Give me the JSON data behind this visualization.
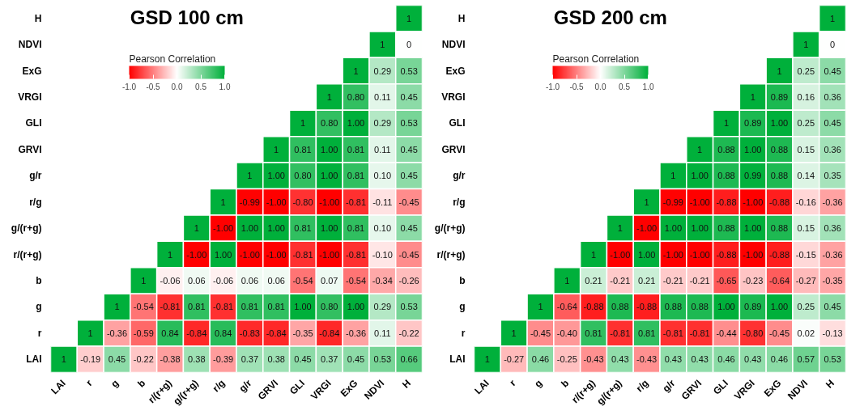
{
  "chart_data": [
    {
      "type": "heatmap",
      "title": "GSD 100 cm",
      "clabel": "Pearson Correlation",
      "categories": [
        "LAI",
        "r",
        "g",
        "b",
        "r/(r+g)",
        "g/(r+g)",
        "r/g",
        "g/r",
        "GRVI",
        "GLI",
        "VRGI",
        "ExG",
        "NDVI",
        "H"
      ],
      "y_categories": [
        "H",
        "NDVI",
        "ExG",
        "VRGI",
        "GLI",
        "GRVI",
        "g/r",
        "r/g",
        "g/(r+g)",
        "r/(r+g)",
        "b",
        "g",
        "r",
        "LAI"
      ],
      "clim": [
        -1.0,
        1.0
      ],
      "cticks": [
        {
          "value": -1.0,
          "label": "-1.0"
        },
        {
          "value": -0.5,
          "label": "-0.5"
        },
        {
          "value": 0.0,
          "label": "0.0"
        },
        {
          "value": 0.5,
          "label": "0.5"
        },
        {
          "value": 1.0,
          "label": "1.0"
        }
      ],
      "cells": [
        [
          null,
          null,
          null,
          null,
          null,
          null,
          null,
          null,
          null,
          null,
          null,
          null,
          null,
          1
        ],
        [
          null,
          null,
          null,
          null,
          null,
          null,
          null,
          null,
          null,
          null,
          null,
          null,
          1,
          0
        ],
        [
          null,
          null,
          null,
          null,
          null,
          null,
          null,
          null,
          null,
          null,
          null,
          1,
          0.29,
          0.53
        ],
        [
          null,
          null,
          null,
          null,
          null,
          null,
          null,
          null,
          null,
          null,
          1,
          0.8,
          0.11,
          0.45
        ],
        [
          null,
          null,
          null,
          null,
          null,
          null,
          null,
          null,
          null,
          1,
          0.8,
          1.0,
          0.29,
          0.53
        ],
        [
          null,
          null,
          null,
          null,
          null,
          null,
          null,
          null,
          1,
          0.81,
          1.0,
          0.81,
          0.11,
          0.45
        ],
        [
          null,
          null,
          null,
          null,
          null,
          null,
          null,
          1,
          1.0,
          0.8,
          1.0,
          0.81,
          0.1,
          0.45
        ],
        [
          null,
          null,
          null,
          null,
          null,
          null,
          1,
          -0.99,
          -1.0,
          -0.8,
          -1.0,
          -0.81,
          -0.11,
          -0.45
        ],
        [
          null,
          null,
          null,
          null,
          null,
          1,
          -1.0,
          1.0,
          1.0,
          0.81,
          1.0,
          0.81,
          0.1,
          0.45
        ],
        [
          null,
          null,
          null,
          null,
          1,
          -1.0,
          1.0,
          -1.0,
          -1.0,
          -0.81,
          -1.0,
          -0.81,
          -0.1,
          -0.45
        ],
        [
          null,
          null,
          null,
          1,
          -0.06,
          0.06,
          -0.06,
          0.06,
          0.06,
          -0.54,
          0.07,
          -0.54,
          -0.34,
          -0.26
        ],
        [
          null,
          null,
          1,
          -0.54,
          -0.81,
          0.81,
          -0.81,
          0.81,
          0.81,
          1.0,
          0.8,
          1.0,
          0.29,
          0.53
        ],
        [
          null,
          1,
          -0.36,
          -0.59,
          0.84,
          -0.84,
          0.84,
          -0.83,
          -0.84,
          -0.35,
          -0.84,
          -0.36,
          0.11,
          -0.22
        ],
        [
          1,
          -0.19,
          0.45,
          -0.22,
          -0.38,
          0.38,
          -0.39,
          0.37,
          0.38,
          0.45,
          0.37,
          0.45,
          0.53,
          0.66
        ]
      ],
      "cell_labels": [
        [
          null,
          null,
          null,
          null,
          null,
          null,
          null,
          null,
          null,
          null,
          null,
          null,
          null,
          "1"
        ],
        [
          null,
          null,
          null,
          null,
          null,
          null,
          null,
          null,
          null,
          null,
          null,
          null,
          "1",
          "0"
        ],
        [
          null,
          null,
          null,
          null,
          null,
          null,
          null,
          null,
          null,
          null,
          null,
          "1",
          "0.29",
          "0.53"
        ],
        [
          null,
          null,
          null,
          null,
          null,
          null,
          null,
          null,
          null,
          null,
          "1",
          "0.80",
          "0.11",
          "0.45"
        ],
        [
          null,
          null,
          null,
          null,
          null,
          null,
          null,
          null,
          null,
          "1",
          "0.80",
          "1.00",
          "0.29",
          "0.53"
        ],
        [
          null,
          null,
          null,
          null,
          null,
          null,
          null,
          null,
          "1",
          "0.81",
          "1.00",
          "0.81",
          "0.11",
          "0.45"
        ],
        [
          null,
          null,
          null,
          null,
          null,
          null,
          null,
          "1",
          "1.00",
          "0.80",
          "1.00",
          "0.81",
          "0.10",
          "0.45"
        ],
        [
          null,
          null,
          null,
          null,
          null,
          null,
          "1",
          "-0.99",
          "-1.00",
          "-0.80",
          "-1.00",
          "-0.81",
          "-0.11",
          "-0.45"
        ],
        [
          null,
          null,
          null,
          null,
          null,
          "1",
          "-1.00",
          "1.00",
          "1.00",
          "0.81",
          "1.00",
          "0.81",
          "0.10",
          "0.45"
        ],
        [
          null,
          null,
          null,
          null,
          "1",
          "-1.00",
          "1.00",
          "-1.00",
          "-1.00",
          "-0.81",
          "-1.00",
          "-0.81",
          "-0.10",
          "-0.45"
        ],
        [
          null,
          null,
          null,
          "1",
          "-0.06",
          "0.06",
          "-0.06",
          "0.06",
          "0.06",
          "-0.54",
          "0.07",
          "-0.54",
          "-0.34",
          "-0.26"
        ],
        [
          null,
          null,
          "1",
          "-0.54",
          "-0.81",
          "0.81",
          "-0.81",
          "0.81",
          "0.81",
          "1.00",
          "0.80",
          "1.00",
          "0.29",
          "0.53"
        ],
        [
          null,
          "1",
          "-0.36",
          "-0.59",
          "0.84",
          "-0.84",
          "0.84",
          "-0.83",
          "-0.84",
          "-0.35",
          "-0.84",
          "-0.36",
          "0.11",
          "-0.22"
        ],
        [
          "1",
          "-0.19",
          "0.45",
          "-0.22",
          "-0.38",
          "0.38",
          "-0.39",
          "0.37",
          "0.38",
          "0.45",
          "0.37",
          "0.45",
          "0.53",
          "0.66"
        ]
      ]
    },
    {
      "type": "heatmap",
      "title": "GSD 200 cm",
      "clabel": "Pearson Correlation",
      "categories": [
        "LAI",
        "r",
        "g",
        "b",
        "r/(r+g)",
        "g/(r+g)",
        "r/g",
        "g/r",
        "GRVI",
        "GLI",
        "VRGI",
        "ExG",
        "NDVI",
        "H"
      ],
      "y_categories": [
        "H",
        "NDVI",
        "ExG",
        "VRGI",
        "GLI",
        "GRVI",
        "g/r",
        "r/g",
        "g/(r+g)",
        "r/(r+g)",
        "b",
        "g",
        "r",
        "LAI"
      ],
      "clim": [
        -1.0,
        1.0
      ],
      "cticks": [
        {
          "value": -1.0,
          "label": "-1.0"
        },
        {
          "value": -0.5,
          "label": "-0.5"
        },
        {
          "value": 0.0,
          "label": "0.0"
        },
        {
          "value": 0.5,
          "label": "0.5"
        },
        {
          "value": 1.0,
          "label": "1.0"
        }
      ],
      "cells": [
        [
          null,
          null,
          null,
          null,
          null,
          null,
          null,
          null,
          null,
          null,
          null,
          null,
          null,
          1
        ],
        [
          null,
          null,
          null,
          null,
          null,
          null,
          null,
          null,
          null,
          null,
          null,
          null,
          1,
          0
        ],
        [
          null,
          null,
          null,
          null,
          null,
          null,
          null,
          null,
          null,
          null,
          null,
          1,
          0.25,
          0.45
        ],
        [
          null,
          null,
          null,
          null,
          null,
          null,
          null,
          null,
          null,
          null,
          1,
          0.89,
          0.16,
          0.36
        ],
        [
          null,
          null,
          null,
          null,
          null,
          null,
          null,
          null,
          null,
          1,
          0.89,
          1.0,
          0.25,
          0.45
        ],
        [
          null,
          null,
          null,
          null,
          null,
          null,
          null,
          null,
          1,
          0.88,
          1.0,
          0.88,
          0.15,
          0.36
        ],
        [
          null,
          null,
          null,
          null,
          null,
          null,
          null,
          1,
          1.0,
          0.88,
          0.99,
          0.88,
          0.14,
          0.35
        ],
        [
          null,
          null,
          null,
          null,
          null,
          null,
          1,
          -0.99,
          -1.0,
          -0.88,
          -1.0,
          -0.88,
          -0.16,
          -0.36
        ],
        [
          null,
          null,
          null,
          null,
          null,
          1,
          -1.0,
          1.0,
          1.0,
          0.88,
          1.0,
          0.88,
          0.15,
          0.36
        ],
        [
          null,
          null,
          null,
          null,
          1,
          -1.0,
          1.0,
          -1.0,
          -1.0,
          -0.88,
          -1.0,
          -0.88,
          -0.15,
          -0.36
        ],
        [
          null,
          null,
          null,
          1,
          0.21,
          -0.21,
          0.21,
          -0.21,
          -0.21,
          -0.65,
          -0.23,
          -0.64,
          -0.27,
          -0.35
        ],
        [
          null,
          null,
          1,
          -0.64,
          -0.88,
          0.88,
          -0.88,
          0.88,
          0.88,
          1.0,
          0.89,
          1.0,
          0.25,
          0.45
        ],
        [
          null,
          1,
          -0.45,
          -0.4,
          0.81,
          -0.81,
          0.81,
          -0.81,
          -0.81,
          -0.44,
          -0.8,
          -0.45,
          0.02,
          -0.13
        ],
        [
          1,
          -0.27,
          0.46,
          -0.25,
          -0.43,
          0.43,
          -0.43,
          0.43,
          0.43,
          0.46,
          0.43,
          0.46,
          0.57,
          0.53
        ]
      ],
      "cell_labels": [
        [
          null,
          null,
          null,
          null,
          null,
          null,
          null,
          null,
          null,
          null,
          null,
          null,
          null,
          "1"
        ],
        [
          null,
          null,
          null,
          null,
          null,
          null,
          null,
          null,
          null,
          null,
          null,
          null,
          "1",
          "0"
        ],
        [
          null,
          null,
          null,
          null,
          null,
          null,
          null,
          null,
          null,
          null,
          null,
          "1",
          "0.25",
          "0.45"
        ],
        [
          null,
          null,
          null,
          null,
          null,
          null,
          null,
          null,
          null,
          null,
          "1",
          "0.89",
          "0.16",
          "0.36"
        ],
        [
          null,
          null,
          null,
          null,
          null,
          null,
          null,
          null,
          null,
          "1",
          "0.89",
          "1.00",
          "0.25",
          "0.45"
        ],
        [
          null,
          null,
          null,
          null,
          null,
          null,
          null,
          null,
          "1",
          "0.88",
          "1.00",
          "0.88",
          "0.15",
          "0.36"
        ],
        [
          null,
          null,
          null,
          null,
          null,
          null,
          null,
          "1",
          "1.00",
          "0.88",
          "0.99",
          "0.88",
          "0.14",
          "0.35"
        ],
        [
          null,
          null,
          null,
          null,
          null,
          null,
          "1",
          "-0.99",
          "-1.00",
          "-0.88",
          "-1.00",
          "-0.88",
          "-0.16",
          "-0.36"
        ],
        [
          null,
          null,
          null,
          null,
          null,
          "1",
          "-1.00",
          "1.00",
          "1.00",
          "0.88",
          "1.00",
          "0.88",
          "0.15",
          "0.36"
        ],
        [
          null,
          null,
          null,
          null,
          "1",
          "-1.00",
          "1.00",
          "-1.00",
          "-1.00",
          "-0.88",
          "-1.00",
          "-0.88",
          "-0.15",
          "-0.36"
        ],
        [
          null,
          null,
          null,
          "1",
          "0.21",
          "-0.21",
          "0.21",
          "-0.21",
          "-0.21",
          "-0.65",
          "-0.23",
          "-0.64",
          "-0.27",
          "-0.35"
        ],
        [
          null,
          null,
          "1",
          "-0.64",
          "-0.88",
          "0.88",
          "-0.88",
          "0.88",
          "0.88",
          "1.00",
          "0.89",
          "1.00",
          "0.25",
          "0.45"
        ],
        [
          null,
          "1",
          "-0.45",
          "-0.40",
          "0.81",
          "-0.81",
          "0.81",
          "-0.81",
          "-0.81",
          "-0.44",
          "-0.80",
          "-0.45",
          "0.02",
          "-0.13"
        ],
        [
          "1",
          "-0.27",
          "0.46",
          "-0.25",
          "-0.43",
          "0.43",
          "-0.43",
          "0.43",
          "0.43",
          "0.46",
          "0.43",
          "0.46",
          "0.57",
          "0.53"
        ]
      ]
    }
  ]
}
